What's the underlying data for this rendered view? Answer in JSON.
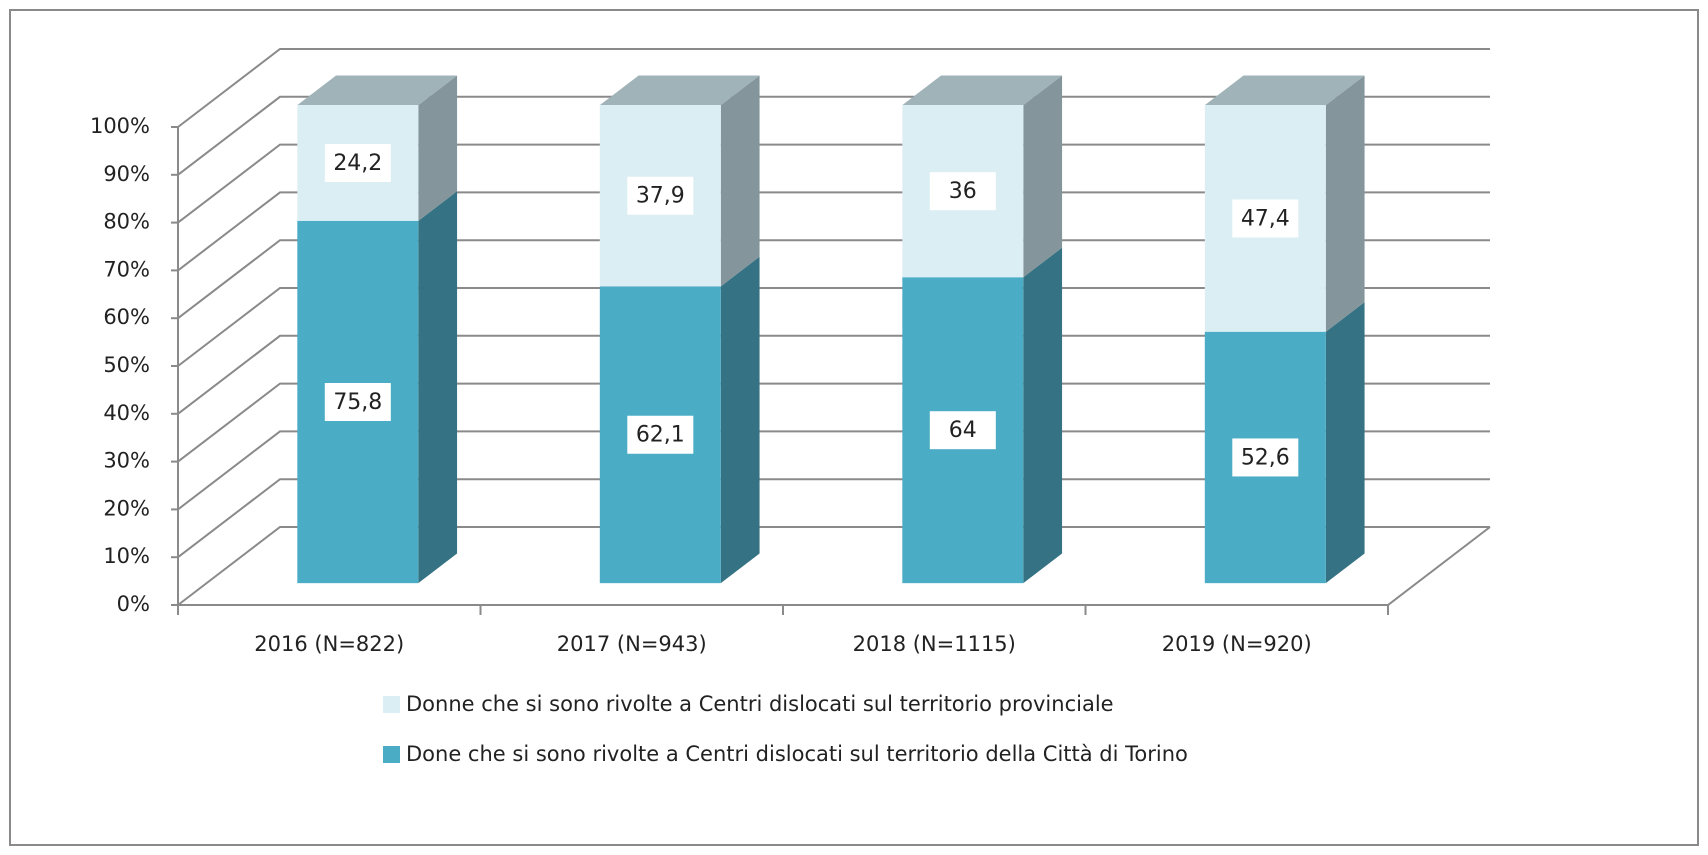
{
  "chart_data": {
    "type": "bar3d_stacked",
    "categories": [
      "2016 (N=822)",
      "2017 (N=943)",
      "2018 (N=1115)",
      "2019 (N=920)"
    ],
    "series": [
      {
        "name": "Done che si sono rivolte a Centri dislocati sul territorio della Città di Torino",
        "color": "#4bacc6",
        "values": [
          75.8,
          62.1,
          64,
          52.6
        ],
        "value_labels": [
          "75,8",
          "62,1",
          "64",
          "52,6"
        ]
      },
      {
        "name": "Donne che si sono rivolte a Centri dislocati sul territorio provinciale",
        "color": "#daeef3",
        "values": [
          24.2,
          37.9,
          36,
          47.4
        ],
        "value_labels": [
          "24,2",
          "37,9",
          "36",
          "47,4"
        ]
      }
    ],
    "ylim": [
      0,
      100
    ],
    "yticks": [
      {
        "value": 0,
        "label": "0%"
      },
      {
        "value": 10,
        "label": "10%"
      },
      {
        "value": 20,
        "label": "20%"
      },
      {
        "value": 30,
        "label": "30%"
      },
      {
        "value": 40,
        "label": "40%"
      },
      {
        "value": 50,
        "label": "50%"
      },
      {
        "value": 60,
        "label": "60%"
      },
      {
        "value": 70,
        "label": "70%"
      },
      {
        "value": 80,
        "label": "80%"
      },
      {
        "value": 90,
        "label": "90%"
      },
      {
        "value": 100,
        "label": "100%"
      }
    ],
    "grid": true,
    "legend": "bottom"
  }
}
